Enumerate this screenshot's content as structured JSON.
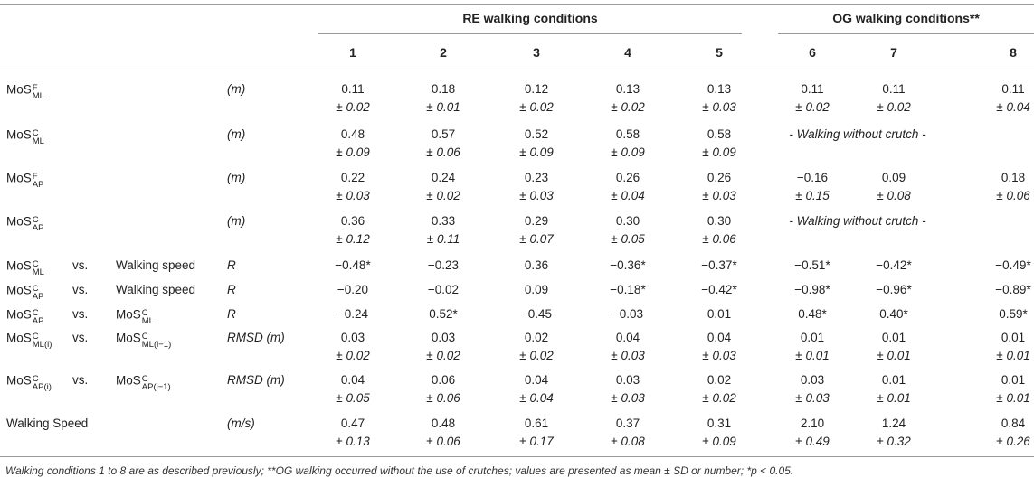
{
  "header": {
    "group_re": "RE walking conditions",
    "group_og": "OG walking conditions**",
    "columns": [
      "1",
      "2",
      "3",
      "4",
      "5",
      "6",
      "7",
      "8"
    ]
  },
  "rows": [
    {
      "lbl": {
        "base": "MoS",
        "sup": "F",
        "sub": "ML"
      },
      "vs": "",
      "second": null,
      "unit": "(m)",
      "mean": [
        "0.11",
        "0.18",
        "0.12",
        "0.13",
        "0.13",
        "0.11",
        "0.11",
        "0.11"
      ],
      "sd": [
        "0.02",
        "0.01",
        "0.02",
        "0.02",
        "0.03",
        "0.02",
        "0.02",
        "0.04"
      ],
      "og_note": ""
    },
    {
      "lbl": {
        "base": "MoS",
        "sup": "C",
        "sub": "ML"
      },
      "vs": "",
      "second": null,
      "unit": "(m)",
      "mean": [
        "0.48",
        "0.57",
        "0.52",
        "0.58",
        "0.58"
      ],
      "sd": [
        "0.09",
        "0.06",
        "0.09",
        "0.09",
        "0.09"
      ],
      "og_note": "- Walking without crutch -"
    },
    {
      "lbl": {
        "base": "MoS",
        "sup": "F",
        "sub": "AP"
      },
      "vs": "",
      "second": null,
      "unit": "(m)",
      "mean": [
        "0.22",
        "0.24",
        "0.23",
        "0.26",
        "0.26",
        "−0.16",
        "0.09",
        "0.18"
      ],
      "sd": [
        "0.03",
        "0.02",
        "0.03",
        "0.04",
        "0.03",
        "0.15",
        "0.08",
        "0.06"
      ],
      "og_note": ""
    },
    {
      "lbl": {
        "base": "MoS",
        "sup": "C",
        "sub": "AP"
      },
      "vs": "",
      "second": null,
      "unit": "(m)",
      "mean": [
        "0.36",
        "0.33",
        "0.29",
        "0.30",
        "0.30"
      ],
      "sd": [
        "0.12",
        "0.11",
        "0.07",
        "0.05",
        "0.06"
      ],
      "og_note": "- Walking without crutch -"
    },
    {
      "lbl": {
        "base": "MoS",
        "sup": "C",
        "sub": "ML"
      },
      "vs": "vs.",
      "second": {
        "text": "Walking speed"
      },
      "unit": "R",
      "mean": [
        "−0.48*",
        "−0.23",
        "0.36",
        "−0.36*",
        "−0.37*",
        "−0.51*",
        "−0.42*",
        "−0.49*"
      ],
      "sd": [],
      "og_note": ""
    },
    {
      "lbl": {
        "base": "MoS",
        "sup": "C",
        "sub": "AP"
      },
      "vs": "vs.",
      "second": {
        "text": "Walking speed"
      },
      "unit": "R",
      "mean": [
        "−0.20",
        "−0.02",
        "0.09",
        "−0.18*",
        "−0.42*",
        "−0.98*",
        "−0.96*",
        "−0.89*"
      ],
      "sd": [],
      "og_note": ""
    },
    {
      "lbl": {
        "base": "MoS",
        "sup": "C",
        "sub": "AP"
      },
      "vs": "vs.",
      "second": {
        "base": "MoS",
        "sup": "C",
        "sub": "ML"
      },
      "unit": "R",
      "mean": [
        "−0.24",
        "0.52*",
        "−0.45",
        "−0.03",
        "0.01",
        "0.48*",
        "0.40*",
        "0.59*"
      ],
      "sd": [],
      "og_note": ""
    },
    {
      "lbl": {
        "base": "MoS",
        "sup": "C",
        "sub": "ML(i)"
      },
      "vs": "vs.",
      "second": {
        "base": "MoS",
        "sup": "C",
        "sub": "ML(i−1)"
      },
      "unit": "RMSD (m)",
      "mean": [
        "0.03",
        "0.03",
        "0.02",
        "0.04",
        "0.04",
        "0.01",
        "0.01",
        "0.01"
      ],
      "sd": [
        "0.02",
        "0.02",
        "0.02",
        "0.03",
        "0.03",
        "0.01",
        "0.01",
        "0.01"
      ],
      "og_note": ""
    },
    {
      "lbl": {
        "base": "MoS",
        "sup": "C",
        "sub": "AP(i)"
      },
      "vs": "vs.",
      "second": {
        "base": "MoS",
        "sup": "C",
        "sub": "AP(i−1)"
      },
      "unit": "RMSD (m)",
      "mean": [
        "0.04",
        "0.06",
        "0.04",
        "0.03",
        "0.02",
        "0.03",
        "0.01",
        "0.01"
      ],
      "sd": [
        "0.05",
        "0.06",
        "0.04",
        "0.03",
        "0.02",
        "0.03",
        "0.01",
        "0.01"
      ],
      "og_note": ""
    },
    {
      "lbl": {
        "text": "Walking Speed"
      },
      "vs": "",
      "second": null,
      "unit": "(m/s)",
      "mean": [
        "0.47",
        "0.48",
        "0.61",
        "0.37",
        "0.31",
        "2.10",
        "1.24",
        "0.84"
      ],
      "sd": [
        "0.13",
        "0.06",
        "0.17",
        "0.08",
        "0.09",
        "0.49",
        "0.32",
        "0.26"
      ],
      "og_note": ""
    }
  ],
  "footnote": "Walking conditions 1 to 8 are as described previously; **OG walking occurred without the use of crutches; values are presented as mean ± SD or number; *p < 0.05."
}
